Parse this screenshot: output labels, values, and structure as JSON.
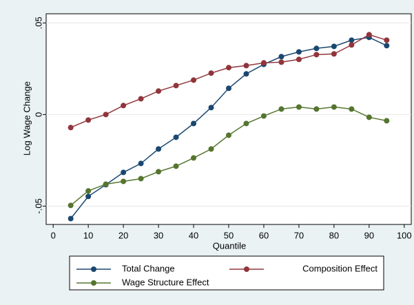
{
  "chart_data": {
    "type": "line",
    "x_label": "Quantile",
    "y_label": "Log Wage Change",
    "x": [
      5,
      10,
      15,
      20,
      25,
      30,
      35,
      40,
      45,
      50,
      55,
      60,
      65,
      70,
      75,
      80,
      85,
      90,
      95
    ],
    "series": [
      {
        "name": "Total Change",
        "color": "#1a476f",
        "values": [
          -0.0568,
          -0.0447,
          -0.0383,
          -0.0316,
          -0.0267,
          -0.0188,
          -0.0124,
          -0.0049,
          0.0038,
          0.0143,
          0.0222,
          0.0274,
          0.0316,
          0.0342,
          0.0361,
          0.0372,
          0.0406,
          0.0421,
          0.0376
        ]
      },
      {
        "name": "Composition Effect",
        "color": "#90353b",
        "values": [
          -0.0071,
          -0.003,
          0,
          0.0049,
          0.0086,
          0.0128,
          0.0158,
          0.0188,
          0.0226,
          0.0256,
          0.0267,
          0.0282,
          0.0286,
          0.0301,
          0.0327,
          0.0331,
          0.038,
          0.0436,
          0.0406
        ]
      },
      {
        "name": "Wage Structure Effect",
        "color": "#55752f",
        "values": [
          -0.0496,
          -0.0417,
          -0.038,
          -0.0365,
          -0.035,
          -0.0312,
          -0.0282,
          -0.0237,
          -0.0188,
          -0.0113,
          -0.0049,
          -0.0008,
          0.003,
          0.0041,
          0.003,
          0.0041,
          0.003,
          -0.0015,
          -0.0034
        ]
      }
    ],
    "xlim": [
      -2,
      102
    ],
    "xticks": [
      0,
      10,
      20,
      30,
      40,
      50,
      60,
      70,
      80,
      90,
      100
    ],
    "ylim": [
      -0.06,
      0.055
    ],
    "yticks": [
      {
        "value": -0.05,
        "label": "-.05"
      },
      0,
      {
        "value": 0.05,
        "label": ".05"
      }
    ],
    "grid": true
  }
}
